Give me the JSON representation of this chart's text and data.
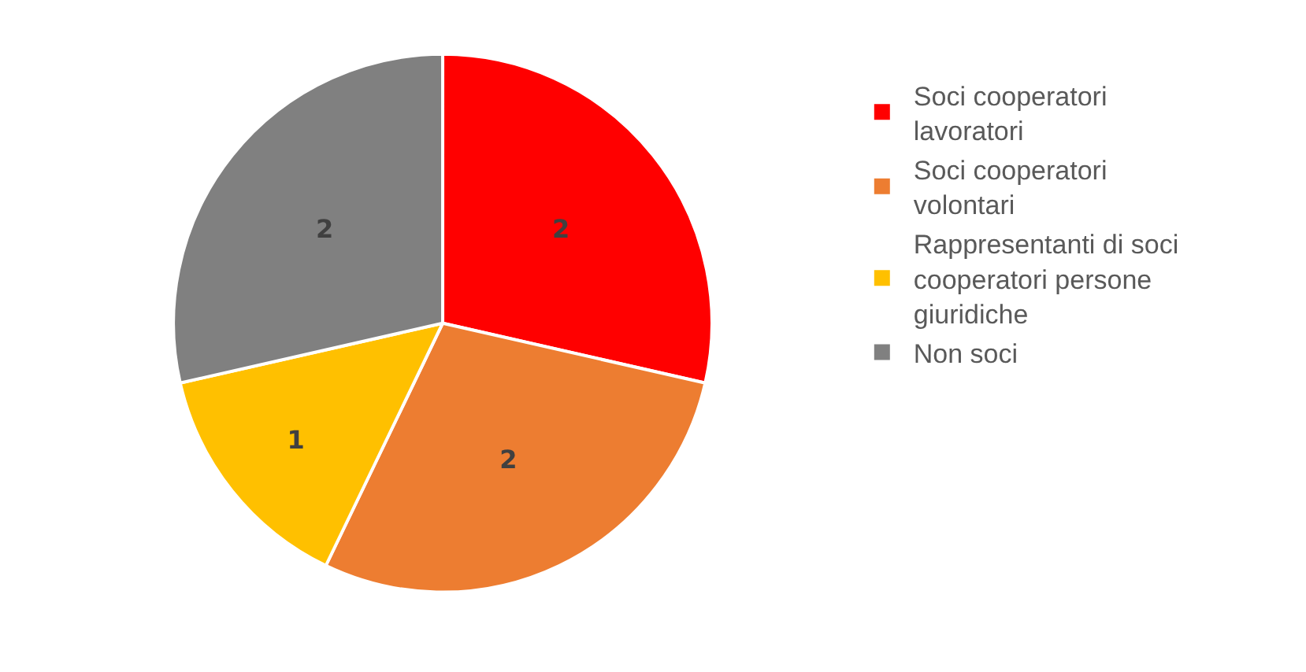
{
  "chart_data": {
    "type": "pie",
    "categories": [
      "Soci cooperatori lavoratori",
      "Soci cooperatori volontari",
      "Rappresentanti di soci cooperatori persone giuridiche",
      "Non soci"
    ],
    "values": [
      2,
      2,
      1,
      2
    ],
    "colors": [
      "#ff0000",
      "#ed7d31",
      "#ffc000",
      "#808080"
    ],
    "data_labels": true,
    "legend": "right"
  }
}
